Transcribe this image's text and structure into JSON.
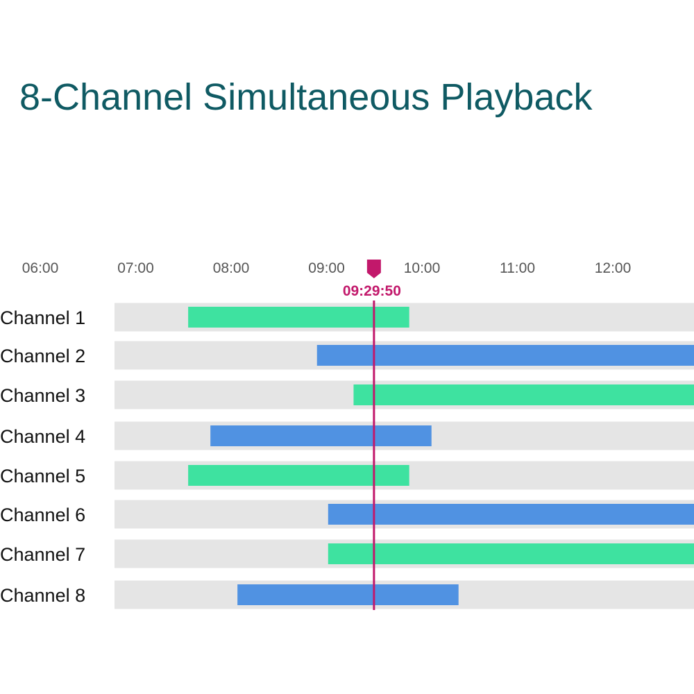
{
  "title": "8-Channel Simultaneous Playback",
  "colors": {
    "title": "#0f5a63",
    "track": "#e5e5e5",
    "green": "#3ee2a0",
    "blue": "#5092e2",
    "playhead": "#c2186b",
    "tick_label": "#555555",
    "channel_label": "#111111"
  },
  "chart_data": {
    "type": "gantt",
    "x_ticks": [
      "06:00",
      "07:00",
      "08:00",
      "09:00",
      "10:00",
      "11:00",
      "12:00"
    ],
    "x_range": [
      "06:00",
      "12:52"
    ],
    "playhead": {
      "time": "09:29:50",
      "label": "09:29:50",
      "marker_icon": "playhead-marker-icon"
    },
    "channels": [
      {
        "label": "Channel 1",
        "start": "07:33",
        "end": "09:52",
        "color": "green"
      },
      {
        "label": "Channel 2",
        "start": "08:54",
        "end": "12:52",
        "color": "blue"
      },
      {
        "label": "Channel 3",
        "start": "09:17",
        "end": "12:52",
        "color": "green"
      },
      {
        "label": "Channel 4",
        "start": "07:47",
        "end": "10:06",
        "color": "blue"
      },
      {
        "label": "Channel 5",
        "start": "07:33",
        "end": "09:52",
        "color": "green"
      },
      {
        "label": "Channel 6",
        "start": "09:01",
        "end": "12:52",
        "color": "blue"
      },
      {
        "label": "Channel 7",
        "start": "09:01",
        "end": "12:52",
        "color": "green"
      },
      {
        "label": "Channel 8",
        "start": "08:04",
        "end": "10:23",
        "color": "blue"
      }
    ]
  }
}
